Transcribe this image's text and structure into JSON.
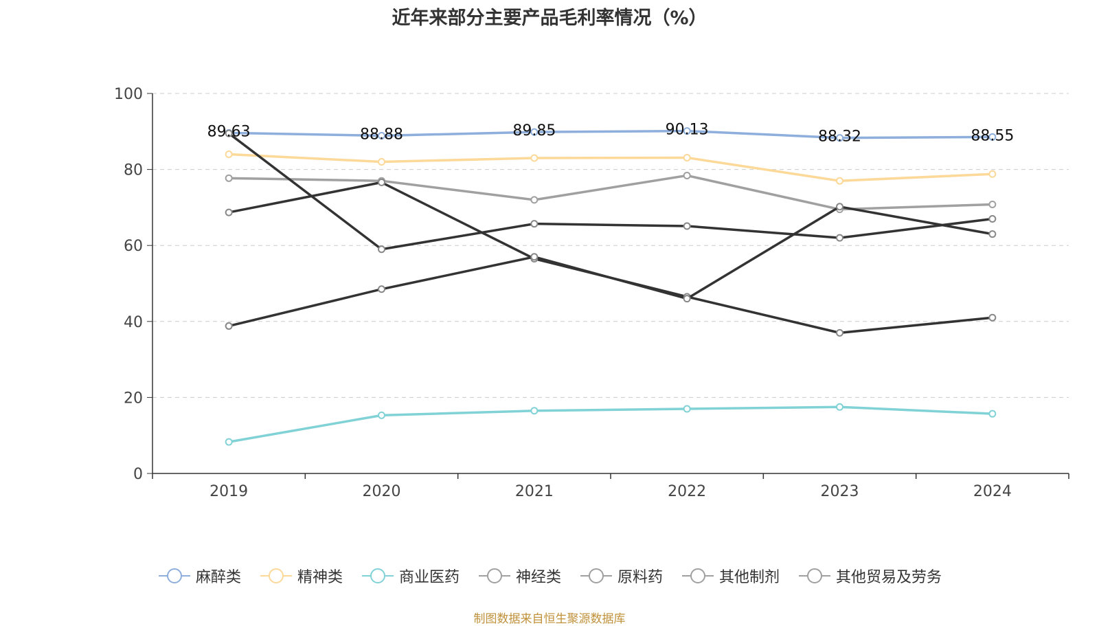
{
  "chart_data": {
    "type": "line",
    "title": "近年来部分主要产品毛利率情况（%）",
    "categories": [
      "2019",
      "2020",
      "2021",
      "2022",
      "2023",
      "2024"
    ],
    "ylim": [
      0,
      100
    ],
    "yticks": [
      "0",
      "20",
      "40",
      "60",
      "80",
      "100"
    ],
    "grid": true,
    "legend_position": "bottom",
    "series": [
      {
        "name": "麻醉类",
        "color": "#8eaedb",
        "values": [
          89.63,
          88.88,
          89.85,
          90.13,
          88.32,
          88.55
        ],
        "labels": [
          "89.63",
          "88.88",
          "89.85",
          "90.13",
          "88.32",
          "88.55"
        ]
      },
      {
        "name": "精神类",
        "color": "#fcd899",
        "values": [
          84.0,
          82.0,
          83.0,
          83.1,
          77.0,
          78.8
        ]
      },
      {
        "name": "商业医药",
        "color": "#80d2d6",
        "values": [
          8.3,
          15.3,
          16.5,
          17.0,
          17.5,
          15.7
        ]
      },
      {
        "name": "神经类",
        "color": "#a0a0a0",
        "values": [
          77.7,
          77.0,
          72.0,
          78.4,
          69.5,
          70.8
        ]
      },
      {
        "name": "原料药",
        "color": "#333333",
        "values": [
          68.7,
          76.6,
          56.5,
          46.5,
          37.0,
          41.0
        ]
      },
      {
        "name": "其他制剂",
        "color": "#333333",
        "values": [
          38.8,
          48.5,
          57.0,
          46.0,
          70.2,
          63.0
        ]
      },
      {
        "name": "其他贸易及劳务",
        "color": "#333333",
        "values": [
          89.5,
          59.0,
          65.7,
          65.1,
          62.0,
          67.0
        ]
      }
    ]
  },
  "source": "制图数据来自恒生聚源数据库"
}
